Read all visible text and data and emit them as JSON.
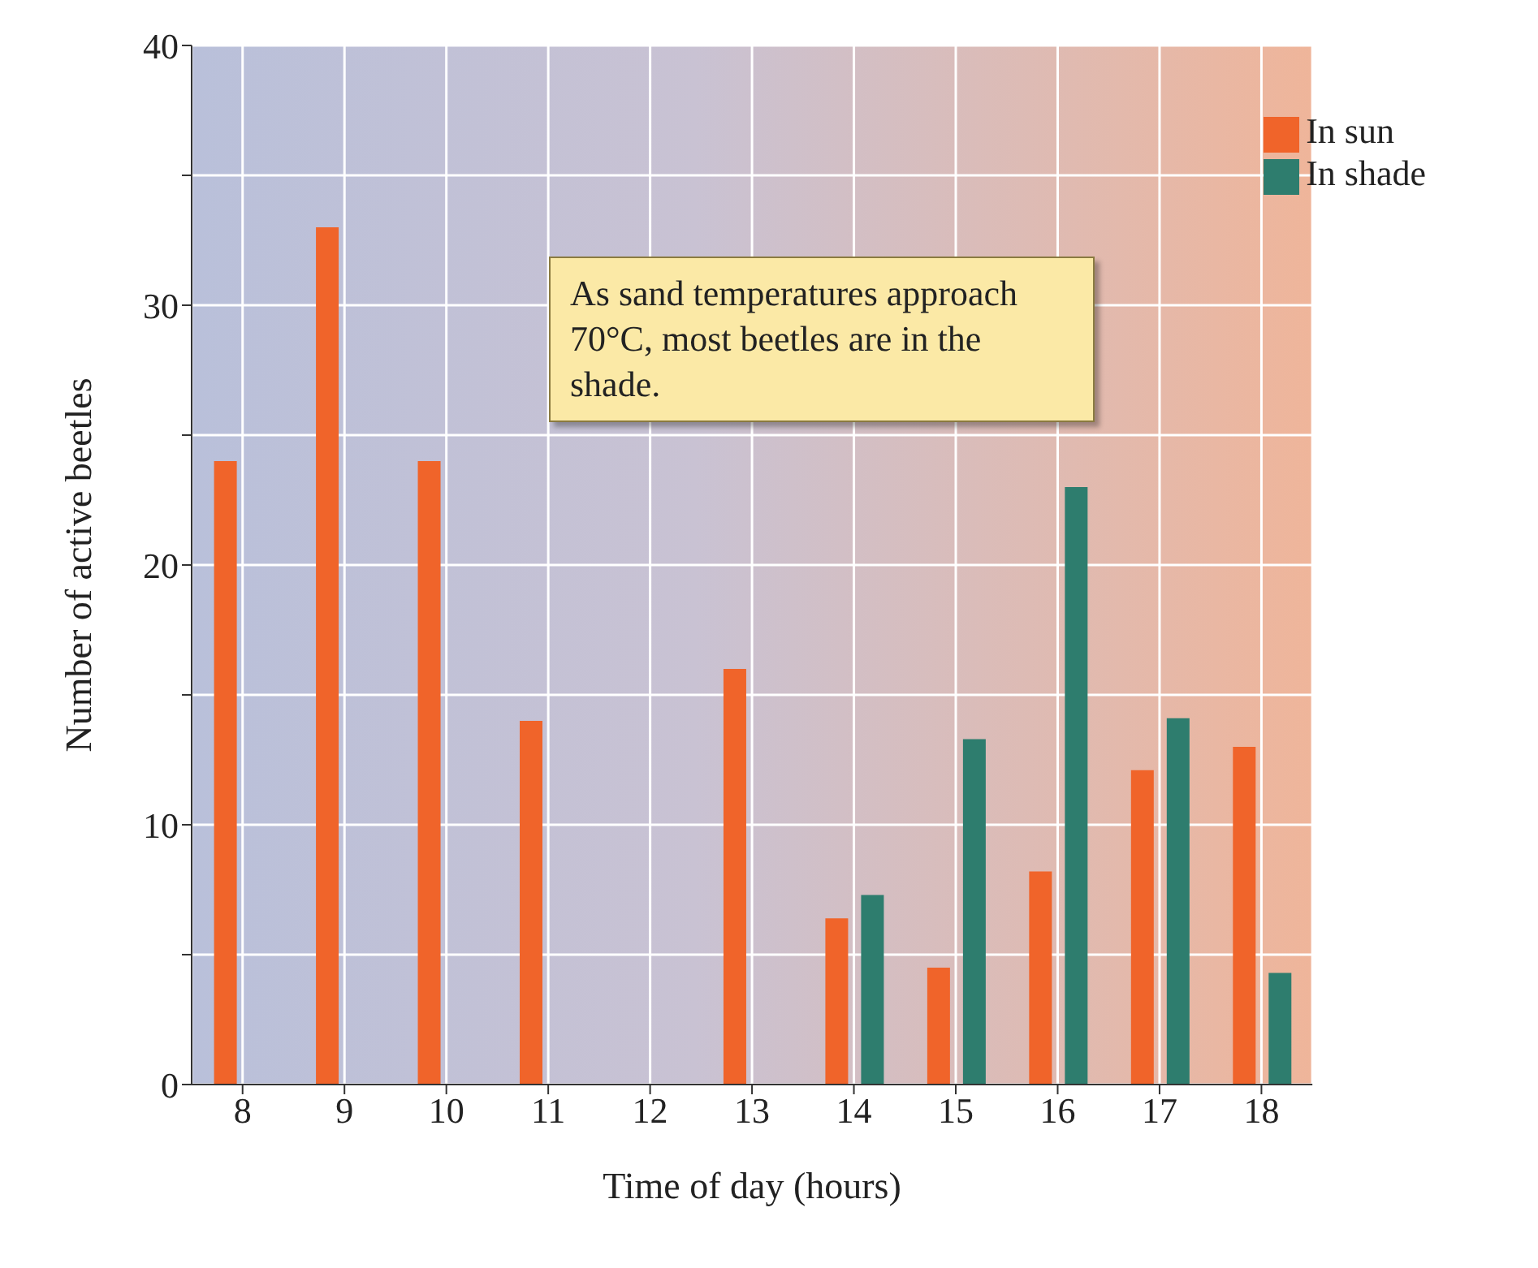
{
  "chart_data": {
    "type": "bar",
    "xlabel": "Time of day (hours)",
    "ylabel": "Number of active beetles",
    "categories": [
      "8",
      "9",
      "10",
      "11",
      "12",
      "13",
      "14",
      "15",
      "16",
      "17",
      "18"
    ],
    "series": [
      {
        "name": "In sun",
        "color": "#f0642a",
        "values": [
          24,
          33,
          24,
          14,
          null,
          16,
          6.4,
          4.5,
          8.2,
          12.1,
          13
        ]
      },
      {
        "name": "In shade",
        "color": "#2e7d6e",
        "values": [
          null,
          null,
          null,
          null,
          null,
          null,
          7.3,
          13.3,
          23,
          14.1,
          4.3
        ]
      }
    ],
    "ylim": [
      0,
      40
    ],
    "yticks": [
      0,
      {
        "value": 5,
        "label": null
      },
      10,
      {
        "value": 15,
        "label": null
      },
      20,
      {
        "value": 25,
        "label": null
      },
      30,
      {
        "value": 35,
        "label": null
      },
      40
    ],
    "grid": true,
    "legend": "top right",
    "annotations": [
      "As sand temperatures approach 70°C, most beetles are in the shade."
    ]
  }
}
